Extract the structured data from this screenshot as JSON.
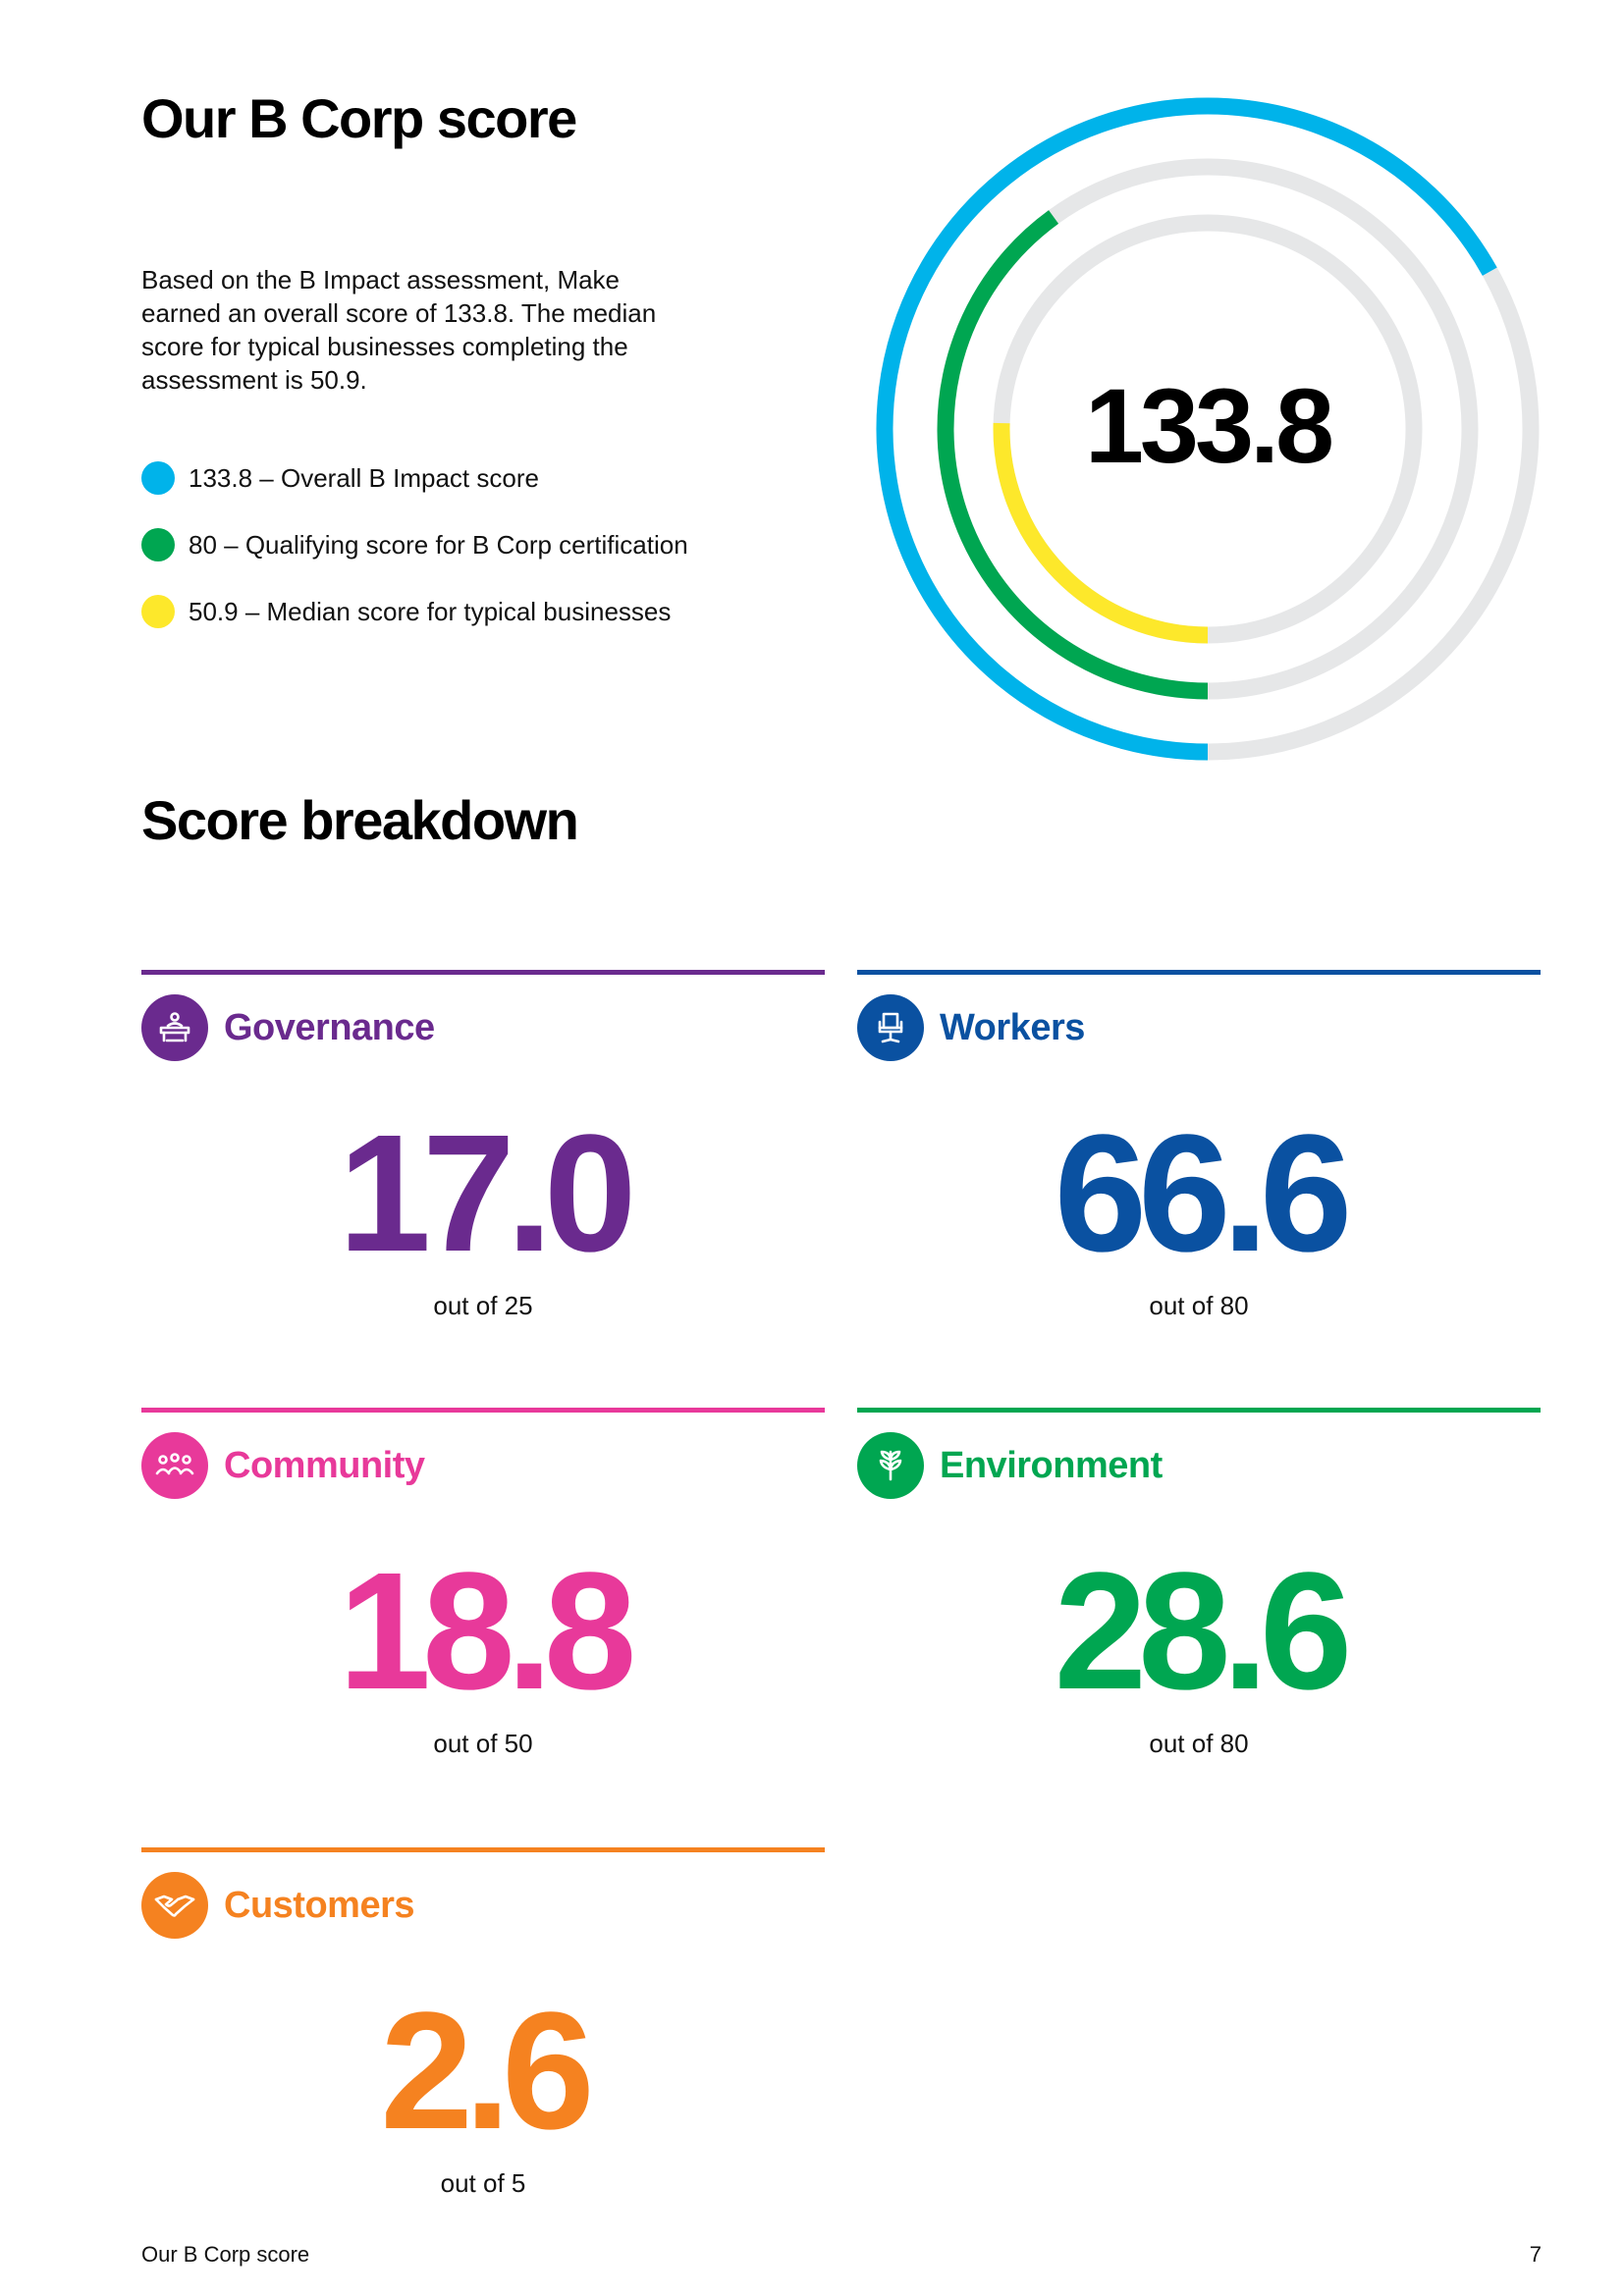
{
  "page": {
    "title": "Our B Corp score",
    "intro": "Based on the B Impact assessment, Make earned an overall score of 133.8. The median score for typical businesses completing the assessment is 50.9.",
    "breakdown_title": "Score breakdown",
    "footer_left": "Our B Corp score",
    "page_number": "7"
  },
  "legend": [
    {
      "label": "133.8 – Overall B Impact score",
      "color": "#00b3ea"
    },
    {
      "label": "80 – Qualifying score for B Corp certification",
      "color": "#00a651"
    },
    {
      "label": "50.9 – Median score for typical businesses",
      "color": "#fde82b"
    }
  ],
  "chart_data": {
    "type": "radial-bar",
    "center_label": "133.8",
    "track_color": "#e6e7e8",
    "series": [
      {
        "name": "Overall B Impact score",
        "value": 133.8,
        "max": 200,
        "color": "#00b3ea"
      },
      {
        "name": "Qualifying score for B Corp certification",
        "value": 80,
        "max": 200,
        "color": "#00a651"
      },
      {
        "name": "Median score for typical businesses",
        "value": 50.9,
        "max": 200,
        "color": "#fde82b"
      }
    ]
  },
  "breakdown": [
    {
      "category": "Governance",
      "score": "17.0",
      "out_of": "out of 25",
      "color": "#6a2a8e",
      "icon": "meeting-table-icon"
    },
    {
      "category": "Workers",
      "score": "66.6",
      "out_of": "out of 80",
      "color": "#0a51a1",
      "icon": "office-chair-icon"
    },
    {
      "category": "Community",
      "score": "18.8",
      "out_of": "out of 50",
      "color": "#e8399a",
      "icon": "people-group-icon"
    },
    {
      "category": "Environment",
      "score": "28.6",
      "out_of": "out of 80",
      "color": "#00a651",
      "icon": "plant-icon"
    },
    {
      "category": "Customers",
      "score": "2.6",
      "out_of": "out of 5",
      "color": "#f58220",
      "icon": "handshake-icon"
    }
  ]
}
